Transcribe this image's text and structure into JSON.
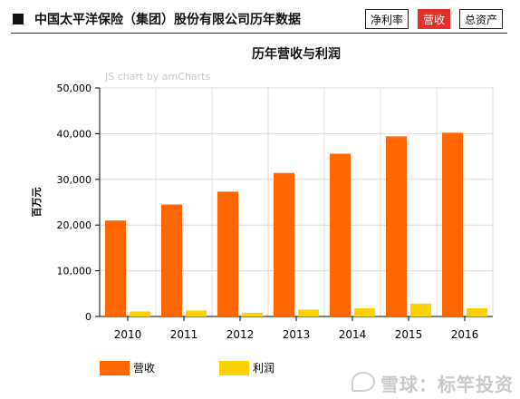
{
  "header": {
    "title": "中国太平洋保险（集团）股份有限公司历年数据",
    "tabs": [
      {
        "label": "净利率",
        "active": false
      },
      {
        "label": "营收",
        "active": true
      },
      {
        "label": "总资产",
        "active": false
      }
    ]
  },
  "credit": "JS chart by amCharts",
  "watermark": "雪球：标竿投资",
  "chart_data": {
    "type": "bar",
    "title": "历年营收与利润",
    "xlabel": "",
    "ylabel": "百万元",
    "categories": [
      "2010",
      "2011",
      "2012",
      "2013",
      "2014",
      "2015",
      "2016"
    ],
    "series": [
      {
        "name": "营收",
        "color": "#ff6600",
        "values": [
          21000,
          24500,
          27300,
          31400,
          35600,
          39400,
          40200
        ]
      },
      {
        "name": "利润",
        "color": "#fcd202",
        "values": [
          1100,
          1300,
          800,
          1500,
          1800,
          2800,
          1800
        ]
      }
    ],
    "ylim": [
      0,
      50000
    ],
    "yticks": [
      0,
      10000,
      20000,
      30000,
      40000,
      50000
    ],
    "ytick_labels": [
      "0",
      "10,000",
      "20,000",
      "30,000",
      "40,000",
      "50,000"
    ],
    "grid": true,
    "legend": "bottom-left"
  }
}
